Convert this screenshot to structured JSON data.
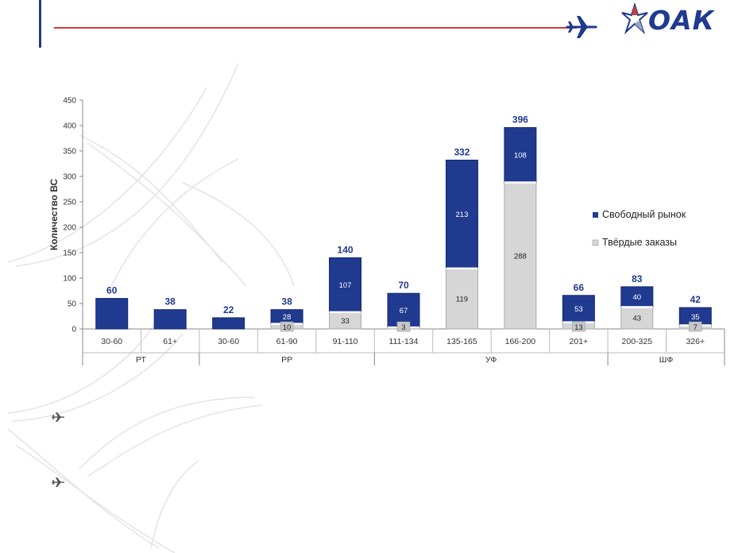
{
  "logo": {
    "text": "ОАК"
  },
  "colors": {
    "free_market": "#1f3a8f",
    "firm_orders": "#d6d6d6",
    "accent_red": "#d33a36",
    "axis_text": "#333333",
    "total_label": "#1f3a8f"
  },
  "icons": {
    "header": "airplane-icon",
    "bullets": [
      "airplane-icon",
      "airplane-icon"
    ]
  },
  "chart_data": {
    "type": "bar",
    "stacked": true,
    "ylabel": "Количество ВС",
    "ylim": [
      0,
      450
    ],
    "yticks": [
      0,
      50,
      100,
      150,
      200,
      250,
      300,
      350,
      400,
      450
    ],
    "categories": [
      "30-60",
      "61+",
      "30-60",
      "61-90",
      "91-110",
      "111-134",
      "135-165",
      "166-200",
      "201+",
      "200-325",
      "326+"
    ],
    "groups": [
      {
        "name": "РТ",
        "count": 2
      },
      {
        "name": "РР",
        "count": 3
      },
      {
        "name": "УФ",
        "count": 4
      },
      {
        "name": "ШФ",
        "count": 2
      }
    ],
    "series": [
      {
        "name": "Твёрдые заказы",
        "values": [
          0,
          0,
          0,
          10,
          33,
          3,
          119,
          288,
          13,
          43,
          7
        ]
      },
      {
        "name": "Свободный рынок",
        "values": [
          60,
          38,
          22,
          28,
          107,
          67,
          213,
          108,
          53,
          40,
          35
        ]
      }
    ],
    "totals": [
      60,
      38,
      22,
      38,
      140,
      70,
      332,
      396,
      66,
      83,
      42
    ],
    "legend": [
      "Свободный рынок",
      "Твёрдые заказы"
    ],
    "legend_position": "right"
  }
}
